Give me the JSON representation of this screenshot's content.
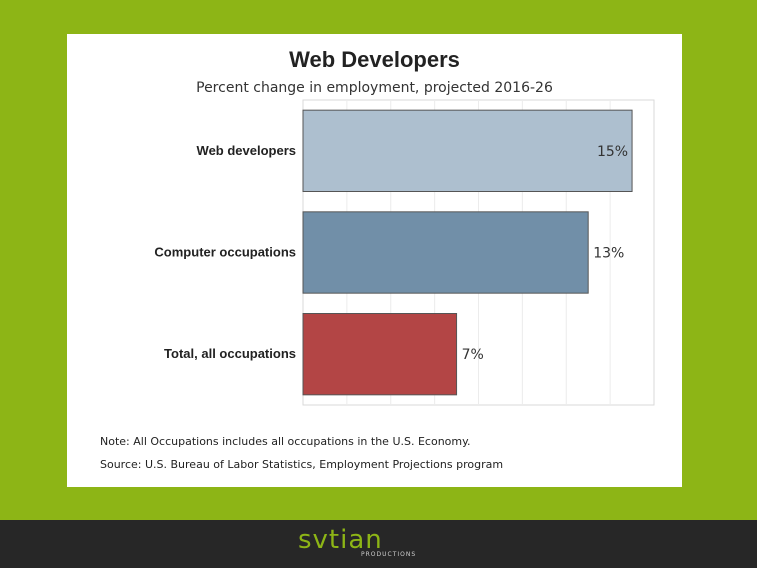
{
  "chart_data": {
    "type": "bar",
    "orientation": "horizontal",
    "title": "Web Developers",
    "subtitle": "Percent change in employment, projected 2016-26",
    "categories": [
      "Web developers",
      "Computer occupations",
      "Total, all occupations"
    ],
    "values": [
      15,
      13,
      7
    ],
    "value_labels": [
      "15%",
      "13%",
      "7%"
    ],
    "colors": [
      "#adbfcf",
      "#718fa8",
      "#b34545"
    ],
    "xlim": [
      0,
      16
    ],
    "grid": true
  },
  "notes": {
    "note": "Note: All Occupations includes all occupations in the U.S. Economy.",
    "source": "Source: U.S. Bureau of Labor Statistics, Employment Projections program"
  },
  "brand": {
    "logo_text": "SVTIAN",
    "logo_subtext": "PRODUCTIONS",
    "accent": "#8db516",
    "footer_bg": "#272727"
  }
}
